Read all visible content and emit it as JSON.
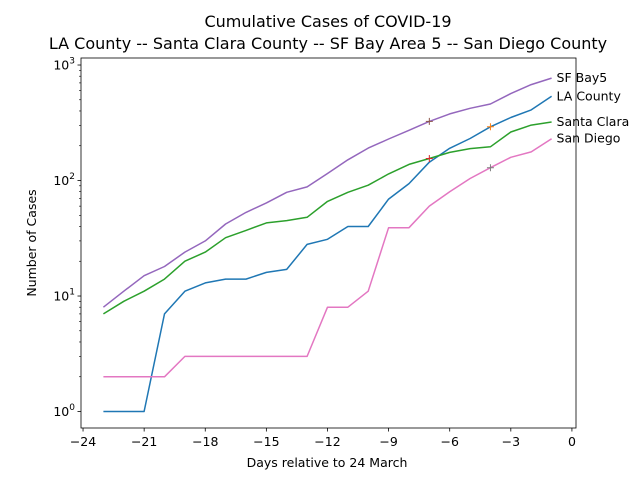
{
  "chart_data": {
    "type": "line",
    "title": "Cumulative Cases of COVID-19",
    "subtitle": "LA County -- Santa Clara County -- SF Bay Area 5 -- San Diego County",
    "xlabel": "Days relative to 24 March",
    "ylabel": "Number of Cases",
    "xlim": [
      -24.1,
      0.2
    ],
    "ylim": [
      0.72,
      1150
    ],
    "yscale": "log",
    "x_ticks": [
      -24,
      -21,
      -18,
      -15,
      -12,
      -9,
      -6,
      -3,
      0
    ],
    "x_tick_labels": [
      "−24",
      "−21",
      "−18",
      "−15",
      "−12",
      "−9",
      "−6",
      "−3",
      "0"
    ],
    "y_ticks": [
      1,
      10,
      100,
      1000
    ],
    "y_tick_labels": [
      {
        "base": "10",
        "exp": "0"
      },
      {
        "base": "10",
        "exp": "1"
      },
      {
        "base": "10",
        "exp": "2"
      },
      {
        "base": "10",
        "exp": "3"
      }
    ],
    "grid": false,
    "x": [
      -23,
      -22,
      -21,
      -20,
      -19,
      -18,
      -17,
      -16,
      -15,
      -14,
      -13,
      -12,
      -11,
      -10,
      -9,
      -8,
      -7,
      -6,
      -5,
      -4,
      -3,
      -2,
      -1
    ],
    "series": [
      {
        "name": "LA County",
        "color": "#1f77b4",
        "values": [
          1,
          1,
          1,
          7,
          11,
          13,
          14,
          14,
          16,
          17,
          28,
          31,
          40,
          40,
          69,
          94,
          144,
          190,
          231,
          292,
          351,
          409,
          536
        ]
      },
      {
        "name": "Santa Clara",
        "color": "#2ca02c",
        "values": [
          7,
          9,
          11,
          14,
          20,
          24,
          32,
          37,
          43,
          45,
          48,
          66,
          79,
          91,
          114,
          138,
          155,
          175,
          189,
          196,
          263,
          302,
          321
        ]
      },
      {
        "name": "SF Bay5",
        "color": "#9467bd",
        "values": [
          8,
          11,
          15,
          18,
          24,
          30,
          42,
          53,
          64,
          79,
          88,
          115,
          151,
          191,
          229,
          272,
          325,
          377,
          422,
          460,
          566,
          677,
          770
        ]
      },
      {
        "name": "San Diego",
        "color": "#e377c2",
        "values": [
          2,
          2,
          2,
          2,
          3,
          3,
          3,
          3,
          3,
          3,
          3,
          8,
          8,
          11,
          39,
          39,
          60,
          80,
          104,
          129,
          159,
          177,
          230
        ]
      }
    ],
    "markers": [
      {
        "x": -7,
        "y": 325,
        "color": "#8c564b"
      },
      {
        "x": -7,
        "y": 155,
        "color": "#d62728"
      },
      {
        "x": -4,
        "y": 292,
        "color": "#ff7f0e"
      },
      {
        "x": -4,
        "y": 129,
        "color": "#7f7f7f"
      }
    ]
  }
}
